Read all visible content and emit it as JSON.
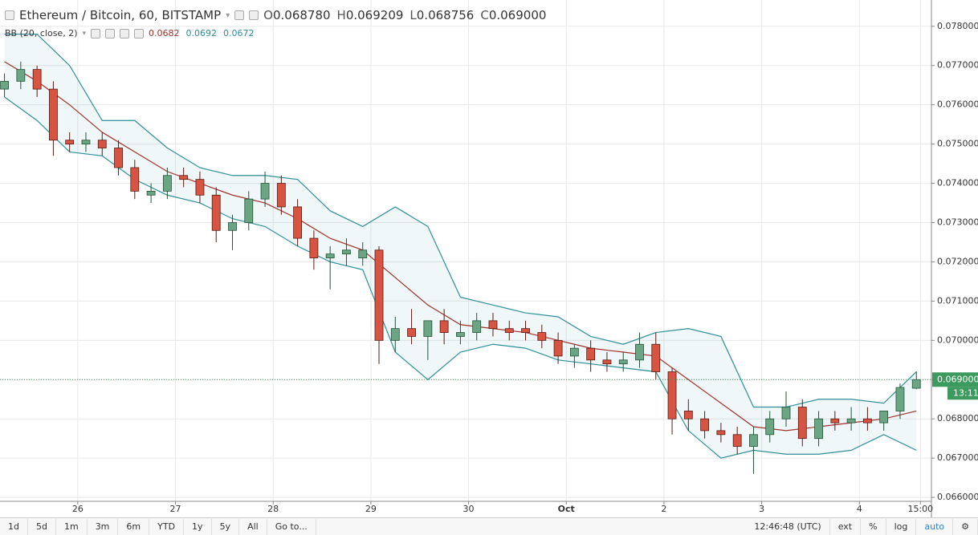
{
  "header": {
    "title": "Ethereum / Bitcoin, 60, BITSTAMP",
    "ohlc": [
      {
        "label": "O",
        "value": "0.068780"
      },
      {
        "label": "H",
        "value": "0.069209"
      },
      {
        "label": "L",
        "value": "0.068756"
      },
      {
        "label": "C",
        "value": "0.069000"
      }
    ]
  },
  "indicator": {
    "label": "BB (20, close, 2)",
    "values": [
      0.0682,
      0.0692,
      0.0672
    ]
  },
  "chart_data": {
    "type": "candlestick",
    "x": [
      -18,
      -14,
      -10,
      -6,
      -2,
      2,
      6,
      10,
      14,
      18,
      22,
      26,
      30,
      34,
      38,
      42,
      46,
      50,
      54,
      58,
      62,
      66,
      70,
      74,
      78,
      82,
      86,
      90,
      94,
      98,
      102,
      106,
      110,
      114,
      118,
      122,
      126,
      130,
      134,
      138,
      142,
      146,
      150,
      154,
      158,
      162,
      166,
      170,
      174,
      178,
      182,
      186,
      190,
      194,
      198,
      202,
      206
    ],
    "open": [
      0.0764,
      0.0766,
      0.0769,
      0.0764,
      0.0751,
      0.075,
      0.0751,
      0.0749,
      0.0744,
      0.0737,
      0.0738,
      0.0742,
      0.0741,
      0.0737,
      0.0728,
      0.073,
      0.0736,
      0.074,
      0.0734,
      0.0726,
      0.0721,
      0.0722,
      0.0721,
      0.0723,
      0.07,
      0.0703,
      0.0701,
      0.0705,
      0.0701,
      0.0702,
      0.0705,
      0.0703,
      0.0703,
      0.0702,
      0.07,
      0.0696,
      0.0698,
      0.0695,
      0.0694,
      0.0695,
      0.0699,
      0.0692,
      0.0682,
      0.068,
      0.0677,
      0.0676,
      0.0673,
      0.0676,
      0.068,
      0.0683,
      0.0675,
      0.068,
      0.0679,
      0.068,
      0.0679,
      0.0682,
      0.06878
    ],
    "high": [
      0.0768,
      0.0771,
      0.077,
      0.0766,
      0.0753,
      0.0753,
      0.0753,
      0.0751,
      0.0746,
      0.074,
      0.0744,
      0.0744,
      0.0743,
      0.0739,
      0.0732,
      0.0738,
      0.0743,
      0.0742,
      0.0736,
      0.0728,
      0.0724,
      0.0726,
      0.0725,
      0.0724,
      0.0706,
      0.0708,
      0.0704,
      0.0708,
      0.0705,
      0.0707,
      0.0707,
      0.0705,
      0.0705,
      0.0704,
      0.0702,
      0.0699,
      0.07,
      0.0697,
      0.0697,
      0.0702,
      0.0702,
      0.0693,
      0.0685,
      0.0682,
      0.0679,
      0.0678,
      0.0678,
      0.0682,
      0.0687,
      0.0685,
      0.0682,
      0.0682,
      0.0683,
      0.0683,
      0.0682,
      0.0689,
      0.069209
    ],
    "low": [
      0.0762,
      0.0764,
      0.0762,
      0.0747,
      0.0748,
      0.0748,
      0.0747,
      0.0742,
      0.0736,
      0.0735,
      0.0736,
      0.0739,
      0.0735,
      0.0725,
      0.0723,
      0.0728,
      0.0734,
      0.0732,
      0.0724,
      0.0718,
      0.0713,
      0.0719,
      0.0719,
      0.0694,
      0.0697,
      0.0699,
      0.0695,
      0.0699,
      0.0699,
      0.07,
      0.0701,
      0.07,
      0.07,
      0.0698,
      0.0694,
      0.0693,
      0.0692,
      0.0692,
      0.0692,
      0.0693,
      0.069,
      0.0676,
      0.0677,
      0.0675,
      0.0674,
      0.0671,
      0.0666,
      0.0674,
      0.0678,
      0.0673,
      0.0673,
      0.0677,
      0.0677,
      0.0677,
      0.0677,
      0.068,
      0.068756
    ],
    "close": [
      0.0766,
      0.0769,
      0.0764,
      0.0751,
      0.075,
      0.0751,
      0.0749,
      0.0744,
      0.0738,
      0.0738,
      0.0742,
      0.0741,
      0.0737,
      0.0728,
      0.073,
      0.0736,
      0.074,
      0.0734,
      0.0726,
      0.0721,
      0.0722,
      0.0723,
      0.0723,
      0.07,
      0.0703,
      0.0701,
      0.0705,
      0.0702,
      0.0702,
      0.0705,
      0.0703,
      0.0702,
      0.0702,
      0.07,
      0.0696,
      0.0698,
      0.0695,
      0.0694,
      0.0695,
      0.0699,
      0.0692,
      0.068,
      0.068,
      0.0677,
      0.0676,
      0.0673,
      0.0676,
      0.068,
      0.0683,
      0.0675,
      0.068,
      0.0679,
      0.068,
      0.0679,
      0.0682,
      0.0688,
      0.069
    ],
    "up_color": "#6ba583",
    "down_color": "#d75442",
    "bands": {
      "x": [
        -18,
        -10,
        -2,
        6,
        14,
        22,
        30,
        38,
        46,
        54,
        62,
        70,
        78,
        86,
        94,
        102,
        110,
        118,
        126,
        134,
        142,
        150,
        158,
        166,
        174,
        182,
        190,
        198,
        206
      ],
      "middle": [
        0.0771,
        0.0766,
        0.076,
        0.0753,
        0.0748,
        0.0743,
        0.074,
        0.0737,
        0.0735,
        0.0731,
        0.0726,
        0.0723,
        0.0716,
        0.0709,
        0.0704,
        0.0703,
        0.0702,
        0.07,
        0.0698,
        0.0697,
        0.0696,
        0.069,
        0.0684,
        0.0678,
        0.0677,
        0.0678,
        0.0679,
        0.068,
        0.0682
      ],
      "upper": [
        0.0778,
        0.0778,
        0.077,
        0.0756,
        0.0756,
        0.0749,
        0.0744,
        0.0742,
        0.0742,
        0.0741,
        0.0733,
        0.0729,
        0.0734,
        0.0729,
        0.0711,
        0.0709,
        0.0707,
        0.0706,
        0.0701,
        0.0699,
        0.0702,
        0.0703,
        0.0701,
        0.0683,
        0.0683,
        0.0685,
        0.0685,
        0.0684,
        0.0692
      ],
      "lower": [
        0.0762,
        0.0756,
        0.0748,
        0.0747,
        0.0741,
        0.0737,
        0.0735,
        0.0731,
        0.0729,
        0.0724,
        0.072,
        0.0718,
        0.0697,
        0.069,
        0.0697,
        0.0699,
        0.0698,
        0.0695,
        0.0694,
        0.0693,
        0.0692,
        0.0677,
        0.067,
        0.0672,
        0.0671,
        0.0671,
        0.0672,
        0.0676,
        0.0672
      ],
      "middle_color": "#a0302a",
      "band_color": "#2f8f98"
    },
    "xlim": [
      -19.1,
      209.7
    ],
    "ylim": [
      0.0659,
      0.07867
    ],
    "xticks": [
      {
        "value": 0,
        "label": "26"
      },
      {
        "value": 24,
        "label": "27"
      },
      {
        "value": 48,
        "label": "28"
      },
      {
        "value": 72,
        "label": "29"
      },
      {
        "value": 96,
        "label": "30"
      },
      {
        "value": 120,
        "label": "Oct"
      },
      {
        "value": 144,
        "label": "2"
      },
      {
        "value": 168,
        "label": "3"
      },
      {
        "value": 192,
        "label": "4"
      },
      {
        "value": 207,
        "label": "15:00"
      }
    ],
    "yticks": [
      {
        "value": 0.066,
        "label": "0.066000"
      },
      {
        "value": 0.067,
        "label": "0.067000"
      },
      {
        "value": 0.068,
        "label": "0.068000"
      },
      {
        "value": 0.069,
        "label": "0.069000"
      },
      {
        "value": 0.07,
        "label": "0.070000"
      },
      {
        "value": 0.071,
        "label": "0.071000"
      },
      {
        "value": 0.072,
        "label": "0.072000"
      },
      {
        "value": 0.073,
        "label": "0.073000"
      },
      {
        "value": 0.074,
        "label": "0.074000"
      },
      {
        "value": 0.075,
        "label": "0.075000"
      },
      {
        "value": 0.076,
        "label": "0.076000"
      },
      {
        "value": 0.077,
        "label": "0.077000"
      },
      {
        "value": 0.078,
        "label": "0.078000"
      }
    ],
    "grid": true,
    "last_price": {
      "value": 0.069,
      "label": "0.069000",
      "color": "#3c9a5f"
    },
    "countdown": "13:11"
  },
  "toolbar": {
    "ranges": [
      "1d",
      "5d",
      "1m",
      "3m",
      "6m",
      "YTD",
      "1y",
      "5y",
      "All"
    ],
    "goto": "Go to...",
    "time": "12:46:48 (UTC)",
    "options": [
      "ext",
      "%",
      "log",
      "auto"
    ]
  }
}
